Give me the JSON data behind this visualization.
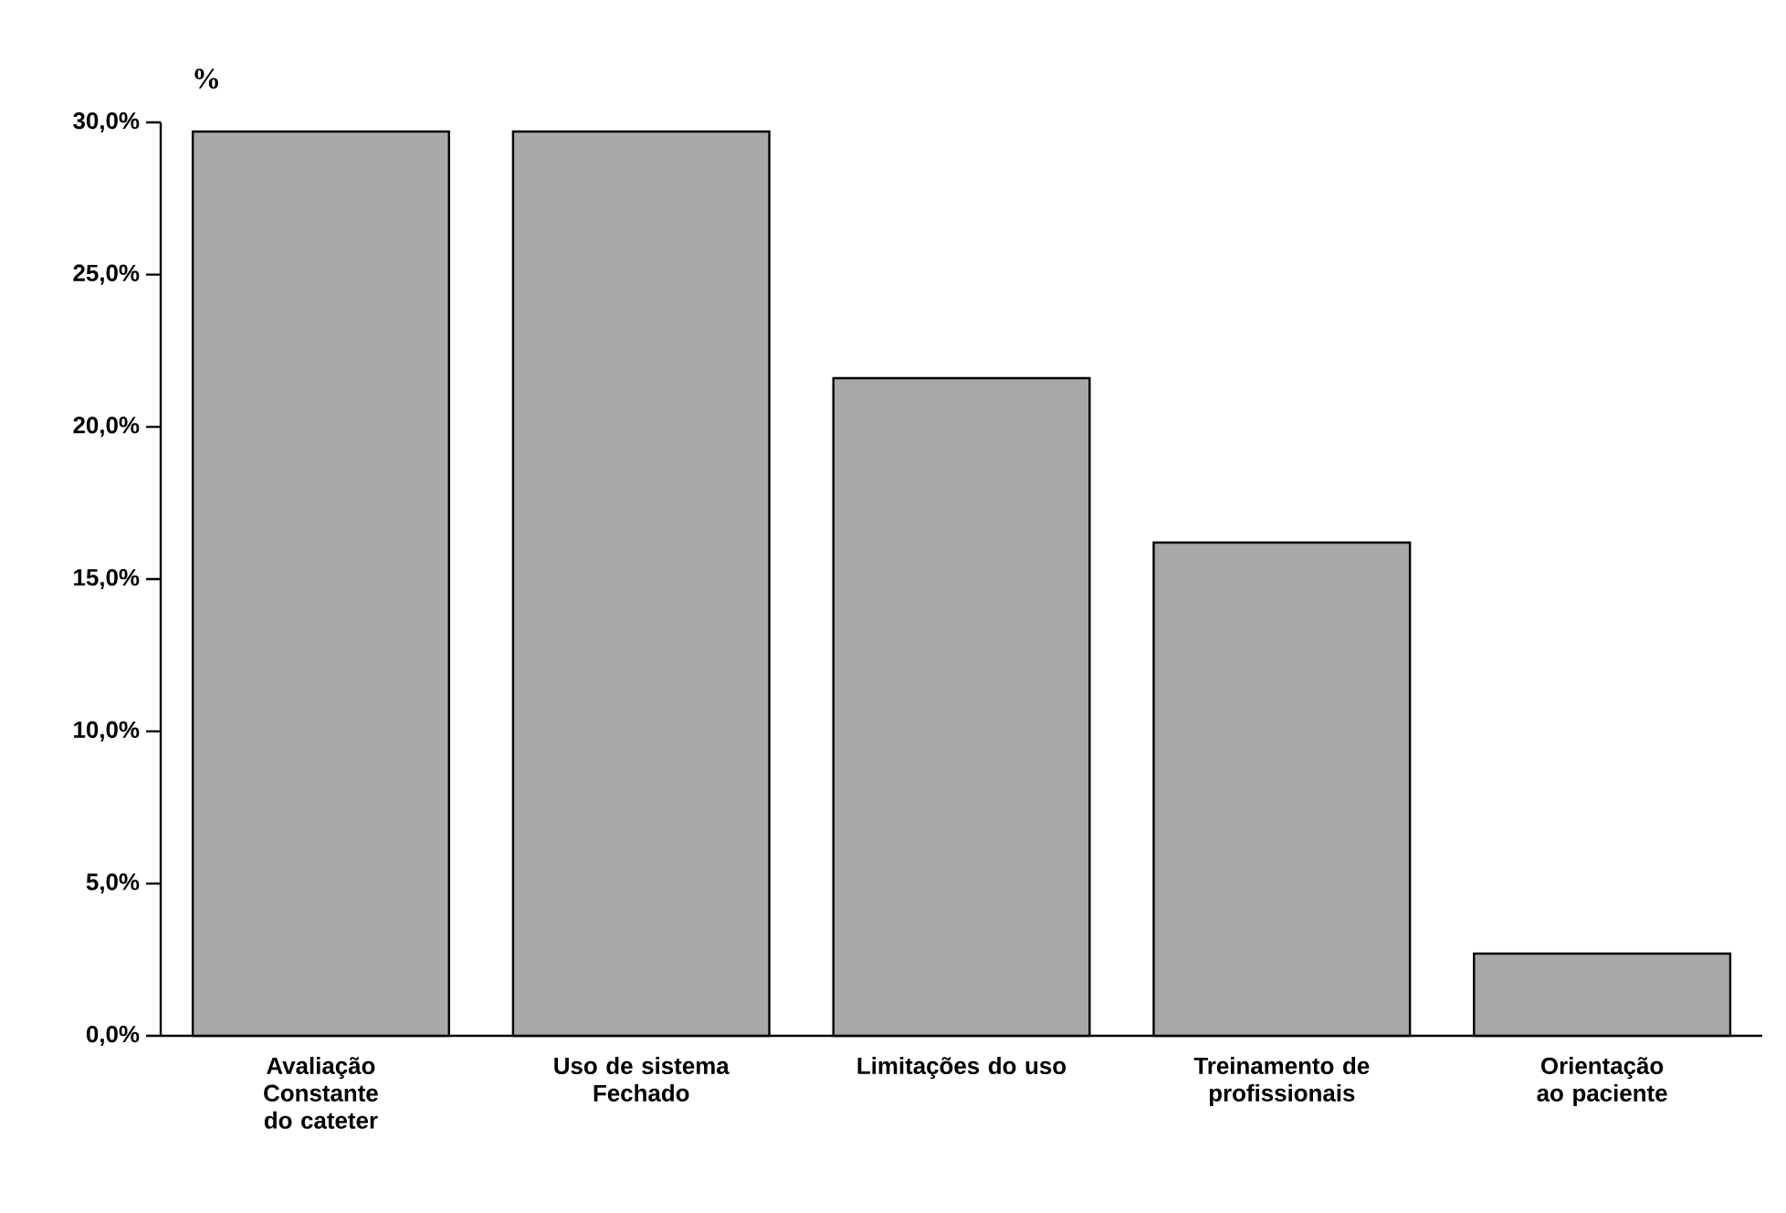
{
  "chart_data": {
    "type": "bar",
    "ylabel": "%",
    "categories": [
      "Avaliação Constante do cateter",
      "Uso de sistema Fechado",
      "Limitações do uso",
      "Treinamento de profissionais",
      "Orientação ao paciente"
    ],
    "values": [
      29.7,
      29.7,
      21.6,
      16.2,
      2.7
    ],
    "color": "#a8a8a8",
    "ylim": [
      0,
      30
    ],
    "yticks": [
      {
        "value": 0,
        "label": "0,0%"
      },
      {
        "value": 5,
        "label": "5,0%"
      },
      {
        "value": 10,
        "label": "10,0%"
      },
      {
        "value": 15,
        "label": "15,0%"
      },
      {
        "value": 20,
        "label": "20,0%"
      },
      {
        "value": 25,
        "label": "25,0%"
      },
      {
        "value": 30,
        "label": "30,0%"
      }
    ],
    "grid": false
  }
}
